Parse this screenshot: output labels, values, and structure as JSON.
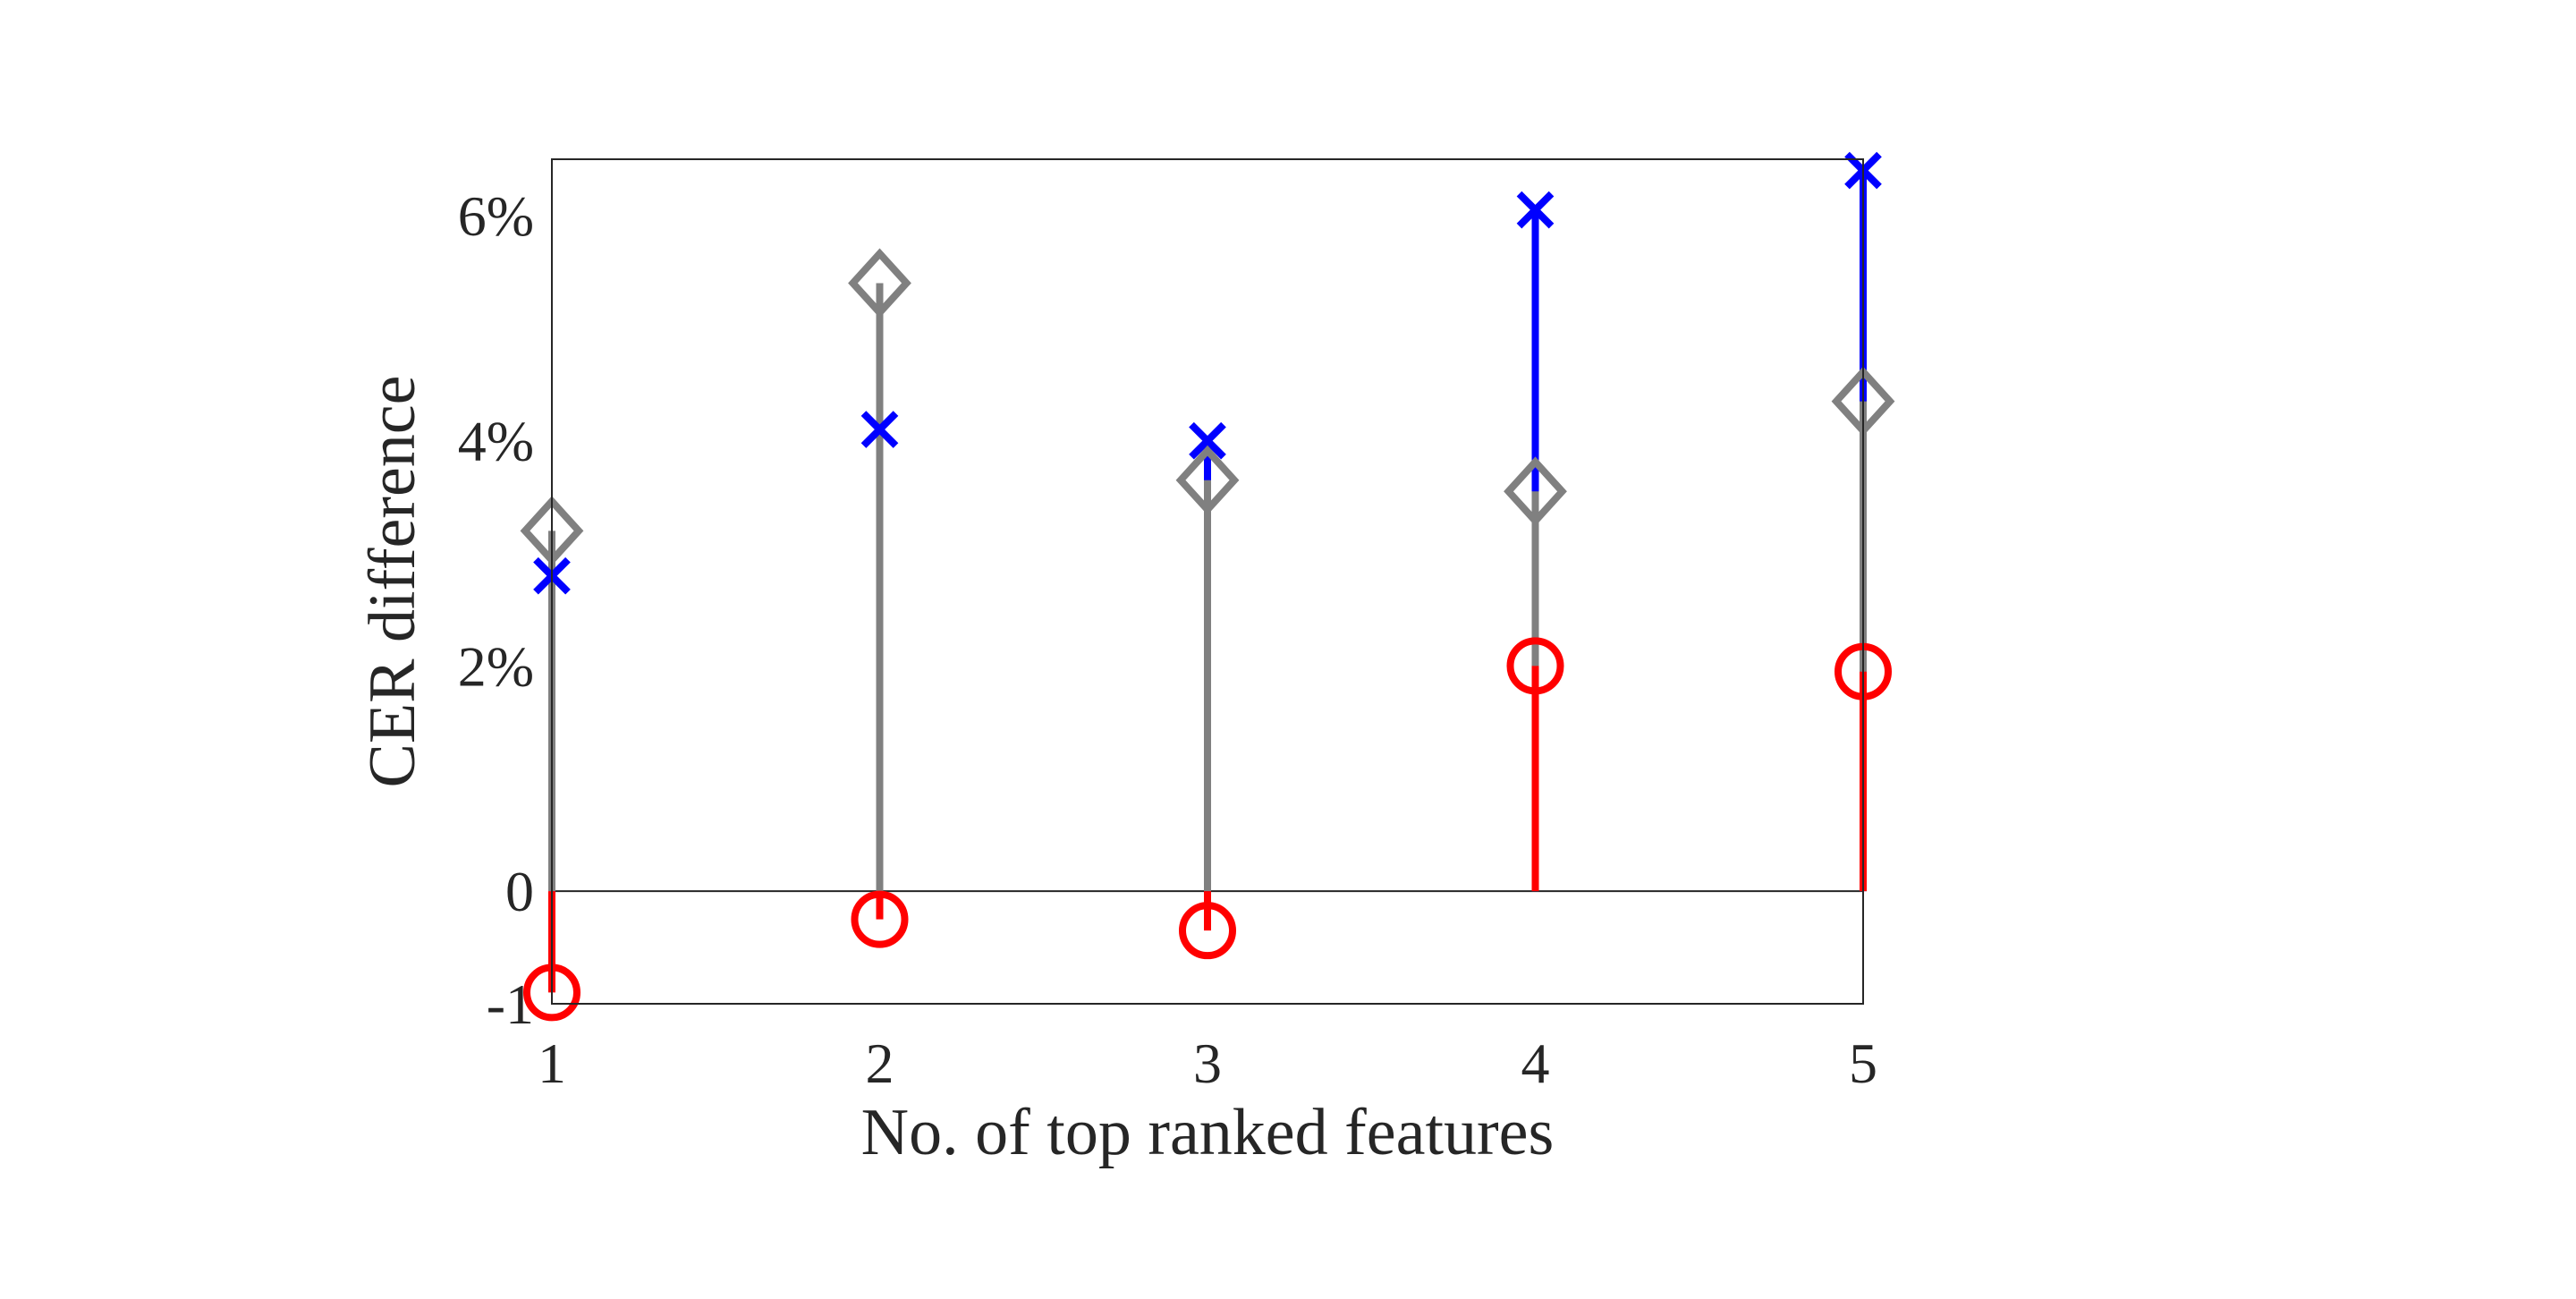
{
  "chart_data": {
    "type": "stem",
    "xlabel": "No. of top ranked features",
    "ylabel": "CER difference",
    "x": [
      1,
      2,
      3,
      4,
      5
    ],
    "xlim": [
      1,
      5
    ],
    "ylim": [
      -1,
      6.5
    ],
    "x_ticks": [
      {
        "value": 1,
        "label": "1"
      },
      {
        "value": 2,
        "label": "2"
      },
      {
        "value": 3,
        "label": "3"
      },
      {
        "value": 4,
        "label": "4"
      },
      {
        "value": 5,
        "label": "5"
      }
    ],
    "y_ticks": [
      {
        "value": -1,
        "label": "-1"
      },
      {
        "value": 0,
        "label": "0"
      },
      {
        "value": 2,
        "label": "2%"
      },
      {
        "value": 4,
        "label": "4%"
      },
      {
        "value": 6,
        "label": "6%"
      }
    ],
    "grid": false,
    "series": [
      {
        "marker": "x",
        "color": "#0000ff",
        "values": [
          2.8,
          4.1,
          4.0,
          6.05,
          6.4
        ]
      },
      {
        "marker": "diamond",
        "color": "#808080",
        "values": [
          3.2,
          5.4,
          3.65,
          3.55,
          4.35
        ]
      },
      {
        "marker": "circle",
        "color": "#ff0000",
        "values": [
          -0.9,
          -0.25,
          -0.35,
          2.0,
          1.95
        ]
      }
    ]
  }
}
